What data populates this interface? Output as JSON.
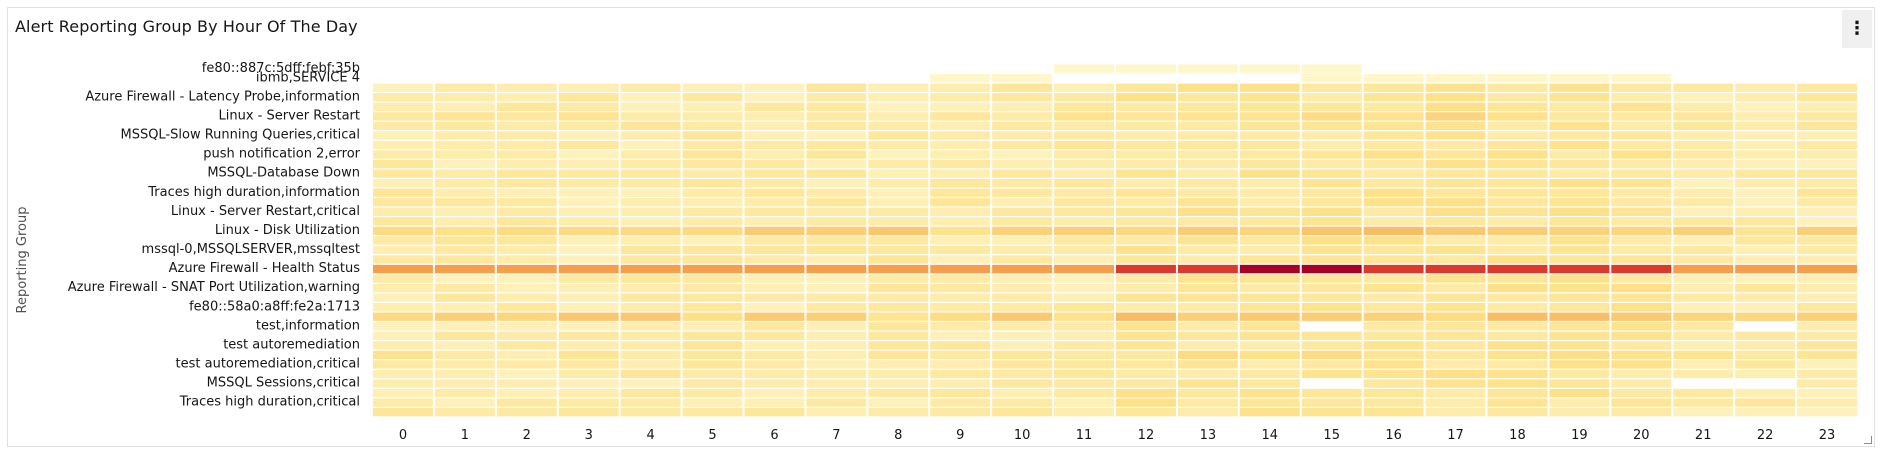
{
  "card": {
    "title": "Alert Reporting Group By Hour Of The Day",
    "menu_icon": "overflow-menu-vertical-icon"
  },
  "chart_data": {
    "type": "heatmap",
    "title": "Alert Reporting Group By Hour Of The Day",
    "xlabel": "",
    "ylabel": "Reporting Group",
    "x": [
      0,
      1,
      2,
      3,
      4,
      5,
      6,
      7,
      8,
      9,
      10,
      11,
      12,
      13,
      14,
      15,
      16,
      17,
      18,
      19,
      20,
      21,
      22,
      23
    ],
    "x_tick_labels": [
      "0",
      "1",
      "2",
      "3",
      "4",
      "5",
      "6",
      "7",
      "8",
      "9",
      "10",
      "11",
      "12",
      "13",
      "14",
      "15",
      "16",
      "17",
      "18",
      "19",
      "20",
      "21",
      "22",
      "23"
    ],
    "visible_y_tick_labels": [
      "fe80::887c:5dff:febf:35b",
      "ibmb,SERVICE 4",
      "Azure Firewall - Latency Probe,information",
      "Linux - Server Restart",
      "MSSQL-Slow Running Queries,critical",
      "push notification 2,error",
      "MSSQL-Database Down",
      "Traces high duration,information",
      "Linux - Server Restart,critical",
      "Linux - Disk Utilization",
      "mssql-0,MSSQLSERVER,mssqltest",
      "Azure Firewall - Health Status",
      "Azure Firewall - SNAT Port Utilization,warning",
      "fe80::58a0:a8ff:fe2a:1713",
      "test,information",
      "test autoremediation",
      "test autoremediation,critical",
      "MSSQL Sessions,critical",
      "Traces high duration,critical"
    ],
    "row_count": 37,
    "intensity_scale": "0 (lightest yellow) to 1 (dark red)",
    "highlight_rows": {
      "row_21": "strongest row (red), darkest between hours 12-20",
      "row_17": "medium orange band",
      "row_26": "medium orange band"
    },
    "busier_hours": [
      12,
      13,
      14,
      15,
      16,
      17,
      18,
      19,
      20
    ],
    "sparse_top_rows": {
      "row_0_hours": [
        11,
        12,
        13,
        14,
        15
      ],
      "row_1_hours": [
        9,
        10,
        15,
        16,
        17,
        18,
        19,
        20
      ]
    },
    "colors": {
      "empty": "#ffffff",
      "low": "#fff7cf",
      "mid": "#fde28a",
      "high": "#f59e4b",
      "max": "#a50026"
    },
    "grid": false,
    "legend": "none"
  }
}
